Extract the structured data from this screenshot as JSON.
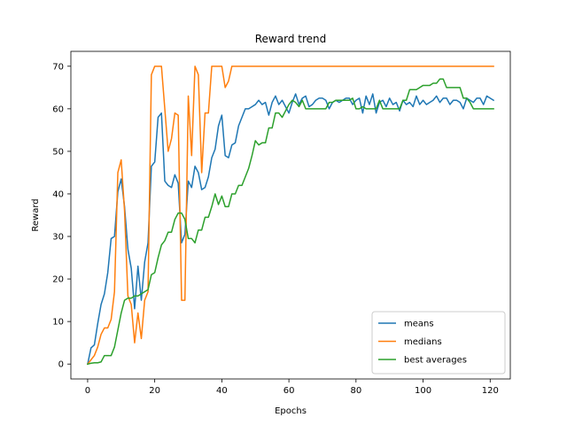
{
  "chart_data": {
    "type": "line",
    "title": "Reward trend",
    "xlabel": "Epochs",
    "ylabel": "Reward",
    "xlim": [
      -5,
      126
    ],
    "ylim": [
      -3.5,
      73.5
    ],
    "xticks": [
      0,
      20,
      40,
      60,
      80,
      100,
      120
    ],
    "yticks": [
      0,
      10,
      20,
      30,
      40,
      50,
      60,
      70
    ],
    "grid": false,
    "legend_position": "lower-right",
    "series": [
      {
        "name": "means",
        "color": "#1f77b4",
        "x": [
          0,
          1,
          2,
          3,
          4,
          5,
          6,
          7,
          8,
          9,
          10,
          11,
          12,
          13,
          14,
          15,
          16,
          17,
          18,
          19,
          20,
          21,
          22,
          23,
          24,
          25,
          26,
          27,
          28,
          29,
          30,
          31,
          32,
          33,
          34,
          35,
          36,
          37,
          38,
          39,
          40,
          41,
          42,
          43,
          44,
          45,
          46,
          47,
          48,
          49,
          50,
          51,
          52,
          53,
          54,
          55,
          56,
          57,
          58,
          59,
          60,
          61,
          62,
          63,
          64,
          65,
          66,
          67,
          68,
          69,
          70,
          71,
          72,
          73,
          74,
          75,
          76,
          77,
          78,
          79,
          80,
          81,
          82,
          83,
          84,
          85,
          86,
          87,
          88,
          89,
          90,
          91,
          92,
          93,
          94,
          95,
          96,
          97,
          98,
          99,
          100,
          101,
          102,
          103,
          104,
          105,
          106,
          107,
          108,
          109,
          110,
          111,
          112,
          113,
          114,
          115,
          116,
          117,
          118,
          119,
          120,
          121
        ],
        "y": [
          0,
          3.8,
          4.5,
          9.5,
          14,
          16.5,
          21.5,
          29.5,
          30,
          40.5,
          43.5,
          37,
          27,
          22.5,
          13,
          23,
          15,
          24,
          28.5,
          46.5,
          47.5,
          58,
          59,
          43,
          42,
          41.5,
          44.5,
          42.5,
          28.5,
          30.5,
          43,
          41.5,
          46.5,
          45,
          41,
          41.5,
          44,
          48.5,
          50.5,
          56,
          58.5,
          49,
          48.5,
          51.5,
          52,
          56,
          58,
          60,
          60,
          60.5,
          61,
          62,
          61,
          61.5,
          58.5,
          61.5,
          63,
          61,
          62,
          60.5,
          59,
          61.5,
          63.5,
          61,
          62.5,
          63,
          60.5,
          61,
          62,
          62.5,
          62.5,
          62,
          60,
          61.5,
          62,
          61.5,
          62,
          62.5,
          62.5,
          61,
          62,
          62.5,
          59,
          63,
          61,
          63.5,
          59,
          61.5,
          62,
          60.5,
          62.5,
          61,
          61.5,
          59.5,
          62,
          61,
          61.5,
          60.5,
          63,
          61,
          62,
          61,
          61.5,
          62,
          63,
          61.5,
          62.5,
          62.5,
          61,
          62,
          62,
          61.5,
          60,
          62.5,
          62,
          61.5,
          62.5,
          62.5,
          61,
          63,
          62.5,
          62
        ]
      },
      {
        "name": "medians",
        "color": "#ff7f0e",
        "x": [
          0,
          1,
          2,
          3,
          4,
          5,
          6,
          7,
          8,
          9,
          10,
          11,
          12,
          13,
          14,
          15,
          16,
          17,
          18,
          19,
          20,
          21,
          22,
          23,
          24,
          25,
          26,
          27,
          28,
          29,
          30,
          31,
          32,
          33,
          34,
          35,
          36,
          37,
          38,
          39,
          40,
          41,
          42,
          43,
          50,
          60,
          70,
          80,
          90,
          100,
          110,
          121
        ],
        "y": [
          0,
          1,
          2,
          4,
          7,
          8.5,
          8.5,
          10.5,
          17,
          45,
          48,
          36,
          16,
          14,
          5,
          12,
          6,
          15,
          17,
          68,
          70,
          70,
          70,
          60,
          50,
          53,
          59,
          58.5,
          15,
          15,
          63,
          49,
          70,
          68,
          45,
          59,
          59,
          70,
          70,
          70,
          70,
          65,
          66.5,
          70,
          70,
          70,
          70,
          70,
          70,
          70,
          70,
          70
        ]
      },
      {
        "name": "best averages",
        "color": "#2ca02c",
        "x": [
          0,
          1,
          2,
          3,
          4,
          5,
          6,
          7,
          8,
          9,
          10,
          11,
          12,
          13,
          14,
          15,
          16,
          17,
          18,
          19,
          20,
          21,
          22,
          23,
          24,
          25,
          26,
          27,
          28,
          29,
          30,
          31,
          32,
          33,
          34,
          35,
          36,
          37,
          38,
          39,
          40,
          41,
          42,
          43,
          44,
          45,
          46,
          47,
          48,
          49,
          50,
          51,
          52,
          53,
          54,
          55,
          56,
          57,
          58,
          59,
          60,
          61,
          62,
          63,
          64,
          65,
          66,
          67,
          68,
          69,
          70,
          71,
          72,
          73,
          74,
          75,
          76,
          77,
          78,
          79,
          80,
          81,
          82,
          83,
          84,
          85,
          86,
          87,
          88,
          89,
          90,
          91,
          92,
          93,
          94,
          95,
          96,
          97,
          98,
          99,
          100,
          101,
          102,
          103,
          104,
          105,
          106,
          107,
          108,
          109,
          110,
          111,
          112,
          113,
          114,
          115,
          116,
          117,
          118,
          119,
          120,
          121
        ],
        "y": [
          0,
          0.2,
          0.3,
          0.3,
          0.5,
          2,
          2,
          2,
          4,
          8,
          12,
          15,
          15.5,
          15.5,
          16,
          16,
          16.5,
          17,
          17.5,
          21,
          21.5,
          25,
          28,
          29,
          31,
          31,
          34,
          35.5,
          35.5,
          34,
          29.5,
          29.5,
          28.5,
          31.5,
          31.5,
          34.5,
          34.5,
          37,
          40,
          37.5,
          39.5,
          37,
          37,
          40,
          40,
          42,
          42,
          44,
          46,
          49,
          52.5,
          51.5,
          52,
          52,
          55.5,
          55.5,
          59,
          59,
          58,
          59.5,
          61,
          62,
          61.5,
          60.5,
          62,
          60,
          60,
          60,
          60,
          60,
          60,
          60,
          61.5,
          61.5,
          62,
          62,
          62,
          62,
          62,
          62.5,
          60,
          60,
          60.5,
          60,
          60,
          60,
          60,
          62,
          60,
          60,
          60,
          60,
          60,
          60,
          62,
          62,
          64.5,
          64.5,
          64.5,
          65,
          65.5,
          65.5,
          65.5,
          66,
          66,
          67,
          67,
          65,
          65,
          65,
          65,
          65,
          62.5,
          62.5,
          61.5,
          60,
          60,
          60,
          60,
          60,
          60,
          60
        ]
      }
    ]
  }
}
